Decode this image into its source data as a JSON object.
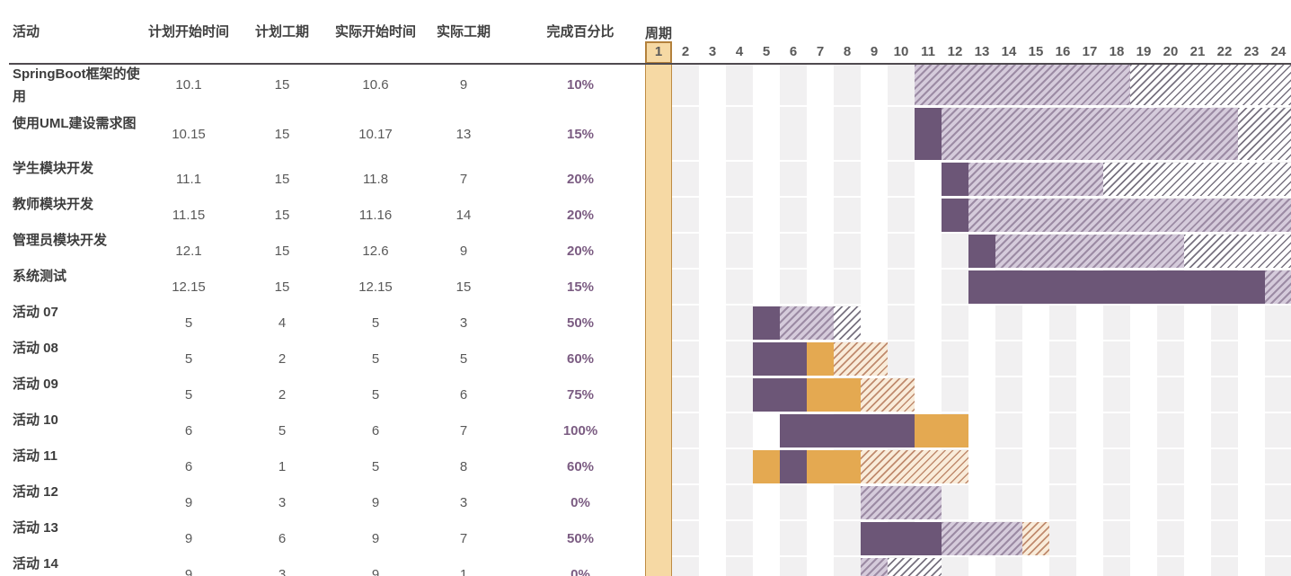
{
  "table": {
    "columns": [
      "活动",
      "计划开始时间",
      "计划工期",
      "实际开始时间",
      "实际工期",
      "完成百分比"
    ],
    "period_label": "周期"
  },
  "colors": {
    "bar_done": "#6C5677",
    "bar_overrun": "#E4A951",
    "hatch_remaining_bg": "#D5CBDB",
    "hatch_overrun_bg": "#F9ECDA",
    "hatch_planned_bg": "#FFFFFF",
    "week1_fill": "#F6D9A4",
    "week1_border": "#BE8C44",
    "stripe": "#F1F0F1",
    "percent_text": "#7B5C82",
    "header_text": "#404040",
    "value_text": "#595959",
    "header_line": "#4F4A4F"
  },
  "chart_data": {
    "type": "gantt",
    "time_unit": "week",
    "weeks": [
      1,
      2,
      3,
      4,
      5,
      6,
      7,
      8,
      9,
      10,
      11,
      12,
      13,
      14,
      15,
      16,
      17,
      18,
      19,
      20,
      21,
      22,
      23,
      24
    ],
    "legend_note": "done=solid purple, overrun-done=solid orange, remaining=purple hatch, overrun-remaining=orange hatch, planned=white/dark hatch",
    "rows": [
      {
        "activity": "SpringBoot框架的使用",
        "plan_start": "10.1",
        "plan_dur": "15",
        "actual_start": "10.6",
        "actual_dur": "9",
        "percent": "10%",
        "segments": [
          {
            "start": 11,
            "end": 19,
            "type": "remaining"
          },
          {
            "start": 19,
            "end": 25,
            "type": "planned"
          }
        ]
      },
      {
        "activity": "使用UML建设需求图",
        "plan_start": "10.15",
        "plan_dur": "15",
        "actual_start": "10.17",
        "actual_dur": "13",
        "percent": "15%",
        "segments": [
          {
            "start": 11,
            "end": 12,
            "type": "done"
          },
          {
            "start": 12,
            "end": 23,
            "type": "remaining"
          },
          {
            "start": 23,
            "end": 25,
            "type": "planned"
          }
        ]
      },
      {
        "activity": "学生模块开发",
        "plan_start": "11.1",
        "plan_dur": "15",
        "actual_start": "11.8",
        "actual_dur": "7",
        "percent": "20%",
        "segments": [
          {
            "start": 12,
            "end": 13,
            "type": "done"
          },
          {
            "start": 13,
            "end": 18,
            "type": "remaining"
          },
          {
            "start": 18,
            "end": 25,
            "type": "planned"
          }
        ]
      },
      {
        "activity": "教师模块开发",
        "plan_start": "11.15",
        "plan_dur": "15",
        "actual_start": "11.16",
        "actual_dur": "14",
        "percent": "20%",
        "segments": [
          {
            "start": 12,
            "end": 13,
            "type": "done"
          },
          {
            "start": 13,
            "end": 25,
            "type": "remaining"
          }
        ]
      },
      {
        "activity": "管理员模块开发",
        "plan_start": "12.1",
        "plan_dur": "15",
        "actual_start": "12.6",
        "actual_dur": "9",
        "percent": "20%",
        "segments": [
          {
            "start": 13,
            "end": 14,
            "type": "done"
          },
          {
            "start": 14,
            "end": 21,
            "type": "remaining"
          },
          {
            "start": 21,
            "end": 25,
            "type": "planned"
          }
        ]
      },
      {
        "activity": "系统测试",
        "plan_start": "12.15",
        "plan_dur": "15",
        "actual_start": "12.15",
        "actual_dur": "15",
        "percent": "15%",
        "segments": [
          {
            "start": 13,
            "end": 24,
            "type": "done"
          },
          {
            "start": 24,
            "end": 25,
            "type": "remaining"
          }
        ]
      },
      {
        "activity": "活动 07",
        "plan_start": "5",
        "plan_dur": "4",
        "actual_start": "5",
        "actual_dur": "3",
        "percent": "50%",
        "segments": [
          {
            "start": 5,
            "end": 6,
            "type": "done"
          },
          {
            "start": 6,
            "end": 8,
            "type": "remaining"
          },
          {
            "start": 8,
            "end": 9,
            "type": "planned"
          }
        ]
      },
      {
        "activity": "活动 08",
        "plan_start": "5",
        "plan_dur": "2",
        "actual_start": "5",
        "actual_dur": "5",
        "percent": "60%",
        "segments": [
          {
            "start": 5,
            "end": 7,
            "type": "done"
          },
          {
            "start": 7,
            "end": 8,
            "type": "overrun-done"
          },
          {
            "start": 8,
            "end": 10,
            "type": "overrun-remaining"
          }
        ]
      },
      {
        "activity": "活动 09",
        "plan_start": "5",
        "plan_dur": "2",
        "actual_start": "5",
        "actual_dur": "6",
        "percent": "75%",
        "segments": [
          {
            "start": 5,
            "end": 7,
            "type": "done"
          },
          {
            "start": 7,
            "end": 9,
            "type": "overrun-done"
          },
          {
            "start": 9,
            "end": 11,
            "type": "overrun-remaining"
          }
        ]
      },
      {
        "activity": "活动 10",
        "plan_start": "6",
        "plan_dur": "5",
        "actual_start": "6",
        "actual_dur": "7",
        "percent": "100%",
        "segments": [
          {
            "start": 6,
            "end": 11,
            "type": "done"
          },
          {
            "start": 11,
            "end": 13,
            "type": "overrun-done"
          }
        ]
      },
      {
        "activity": "活动 11",
        "plan_start": "6",
        "plan_dur": "1",
        "actual_start": "5",
        "actual_dur": "8",
        "percent": "60%",
        "segments": [
          {
            "start": 5,
            "end": 6,
            "type": "overrun-done"
          },
          {
            "start": 6,
            "end": 7,
            "type": "done"
          },
          {
            "start": 7,
            "end": 9,
            "type": "overrun-done"
          },
          {
            "start": 9,
            "end": 13,
            "type": "overrun-remaining"
          }
        ]
      },
      {
        "activity": "活动 12",
        "plan_start": "9",
        "plan_dur": "3",
        "actual_start": "9",
        "actual_dur": "3",
        "percent": "0%",
        "segments": [
          {
            "start": 9,
            "end": 12,
            "type": "remaining"
          }
        ]
      },
      {
        "activity": "活动 13",
        "plan_start": "9",
        "plan_dur": "6",
        "actual_start": "9",
        "actual_dur": "7",
        "percent": "50%",
        "segments": [
          {
            "start": 9,
            "end": 12,
            "type": "done"
          },
          {
            "start": 12,
            "end": 15,
            "type": "remaining"
          },
          {
            "start": 15,
            "end": 16,
            "type": "overrun-remaining"
          }
        ]
      },
      {
        "activity": "活动 14",
        "plan_start": "9",
        "plan_dur": "3",
        "actual_start": "9",
        "actual_dur": "1",
        "percent": "0%",
        "segments": [
          {
            "start": 9,
            "end": 10,
            "type": "remaining"
          },
          {
            "start": 10,
            "end": 12,
            "type": "planned"
          }
        ]
      }
    ]
  }
}
